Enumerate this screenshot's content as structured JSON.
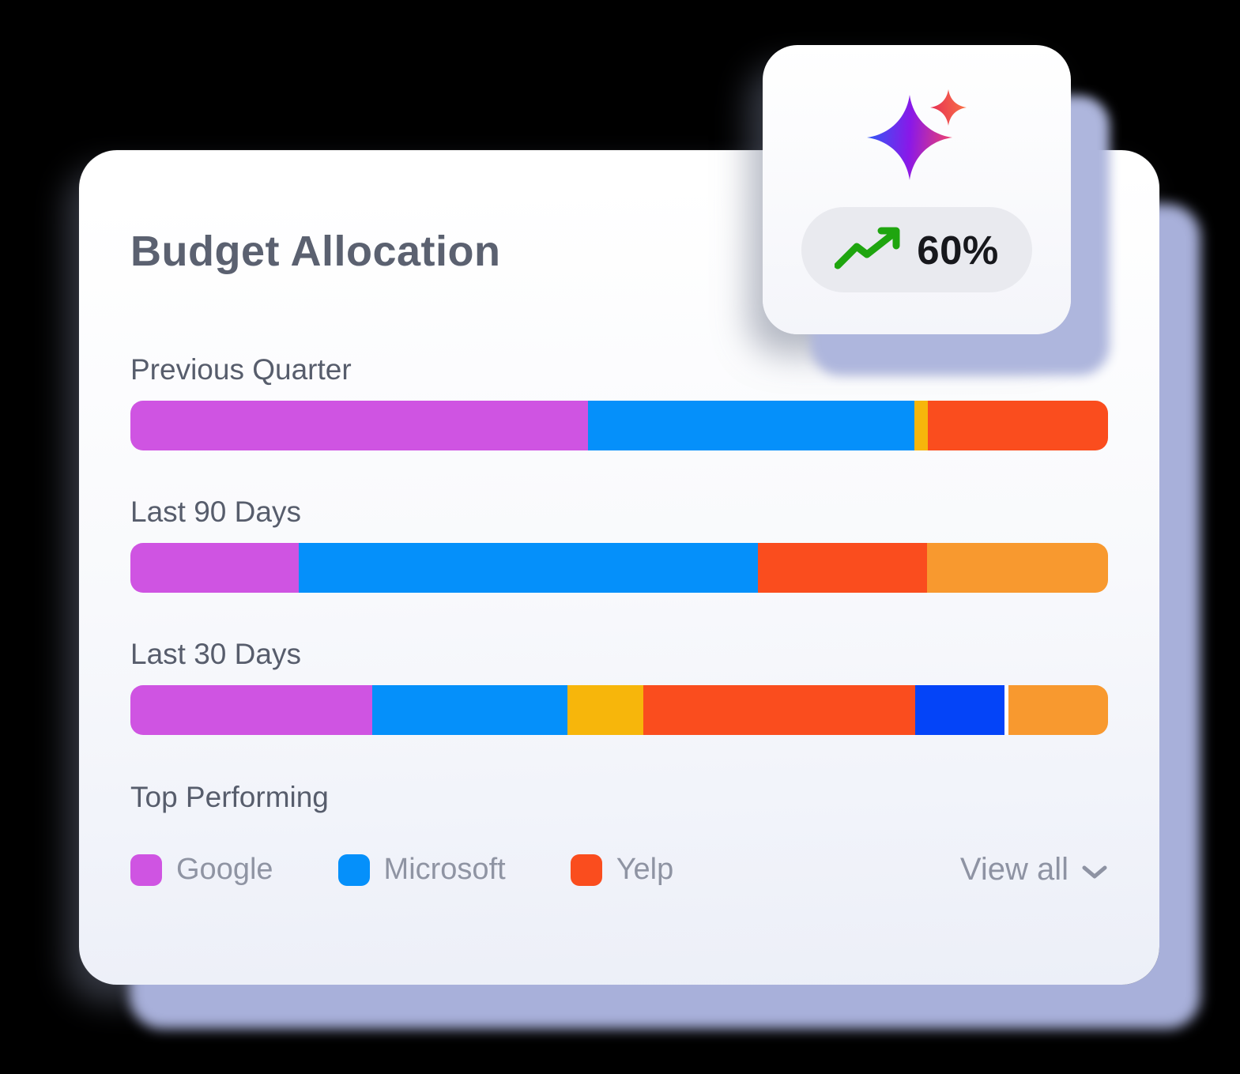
{
  "page": {
    "background": "#000000"
  },
  "badge": {
    "value": "60%",
    "icons": {
      "sparkles": "sparkles-icon",
      "trend": "trending-up-icon"
    },
    "trend_color": "#1fa50f",
    "pill_bg": "#e9eaef"
  },
  "card": {
    "title": "Budget Allocation",
    "legend": {
      "heading": "Top Performing",
      "items": [
        {
          "label": "Google",
          "color": "#cf54e2"
        },
        {
          "label": "Microsoft",
          "color": "#0590fa"
        },
        {
          "label": "Yelp",
          "color": "#fa4d1e"
        }
      ],
      "view_all": "View all"
    }
  },
  "chart_data": {
    "type": "bar",
    "variant": "horizontal-stacked",
    "title": "Budget Allocation",
    "categories": [
      "Previous Quarter",
      "Last 90 Days",
      "Last 30 Days"
    ],
    "value_unit": "percent of total bar width (estimated from pixels)",
    "legend": [
      "Google",
      "Microsoft",
      "Yelp"
    ],
    "legend_position": "bottom",
    "rows": [
      {
        "category": "Previous Quarter",
        "segments": [
          {
            "name": "Google",
            "color": "#cf54e2",
            "value": 46.8
          },
          {
            "name": "Microsoft",
            "color": "#0590fa",
            "value": 33.4
          },
          {
            "name": "other-yellow",
            "color": "#f7b60b",
            "value": 1.4
          },
          {
            "name": "Yelp",
            "color": "#fa4d1e",
            "value": 18.4
          }
        ]
      },
      {
        "category": "Last 90 Days",
        "segments": [
          {
            "name": "Google",
            "color": "#cf54e2",
            "value": 17.2
          },
          {
            "name": "Microsoft",
            "color": "#0590fa",
            "value": 47.0
          },
          {
            "name": "Yelp",
            "color": "#fa4d1e",
            "value": 17.3
          },
          {
            "name": "other-amber",
            "color": "#f8992f",
            "value": 18.5
          }
        ]
      },
      {
        "category": "Last 30 Days",
        "segments": [
          {
            "name": "Google",
            "color": "#cf54e2",
            "value": 24.7
          },
          {
            "name": "Microsoft",
            "color": "#0590fa",
            "value": 20.0
          },
          {
            "name": "other-yellow",
            "color": "#f7b60b",
            "value": 7.8
          },
          {
            "name": "Yelp",
            "color": "#fa4d1e",
            "value": 27.8
          },
          {
            "name": "other-navy",
            "color": "#0444f8",
            "value": 9.1
          },
          {
            "name": "other-amber",
            "color": "#f8992f",
            "value": 10.6,
            "gap_before": true
          }
        ]
      }
    ]
  }
}
